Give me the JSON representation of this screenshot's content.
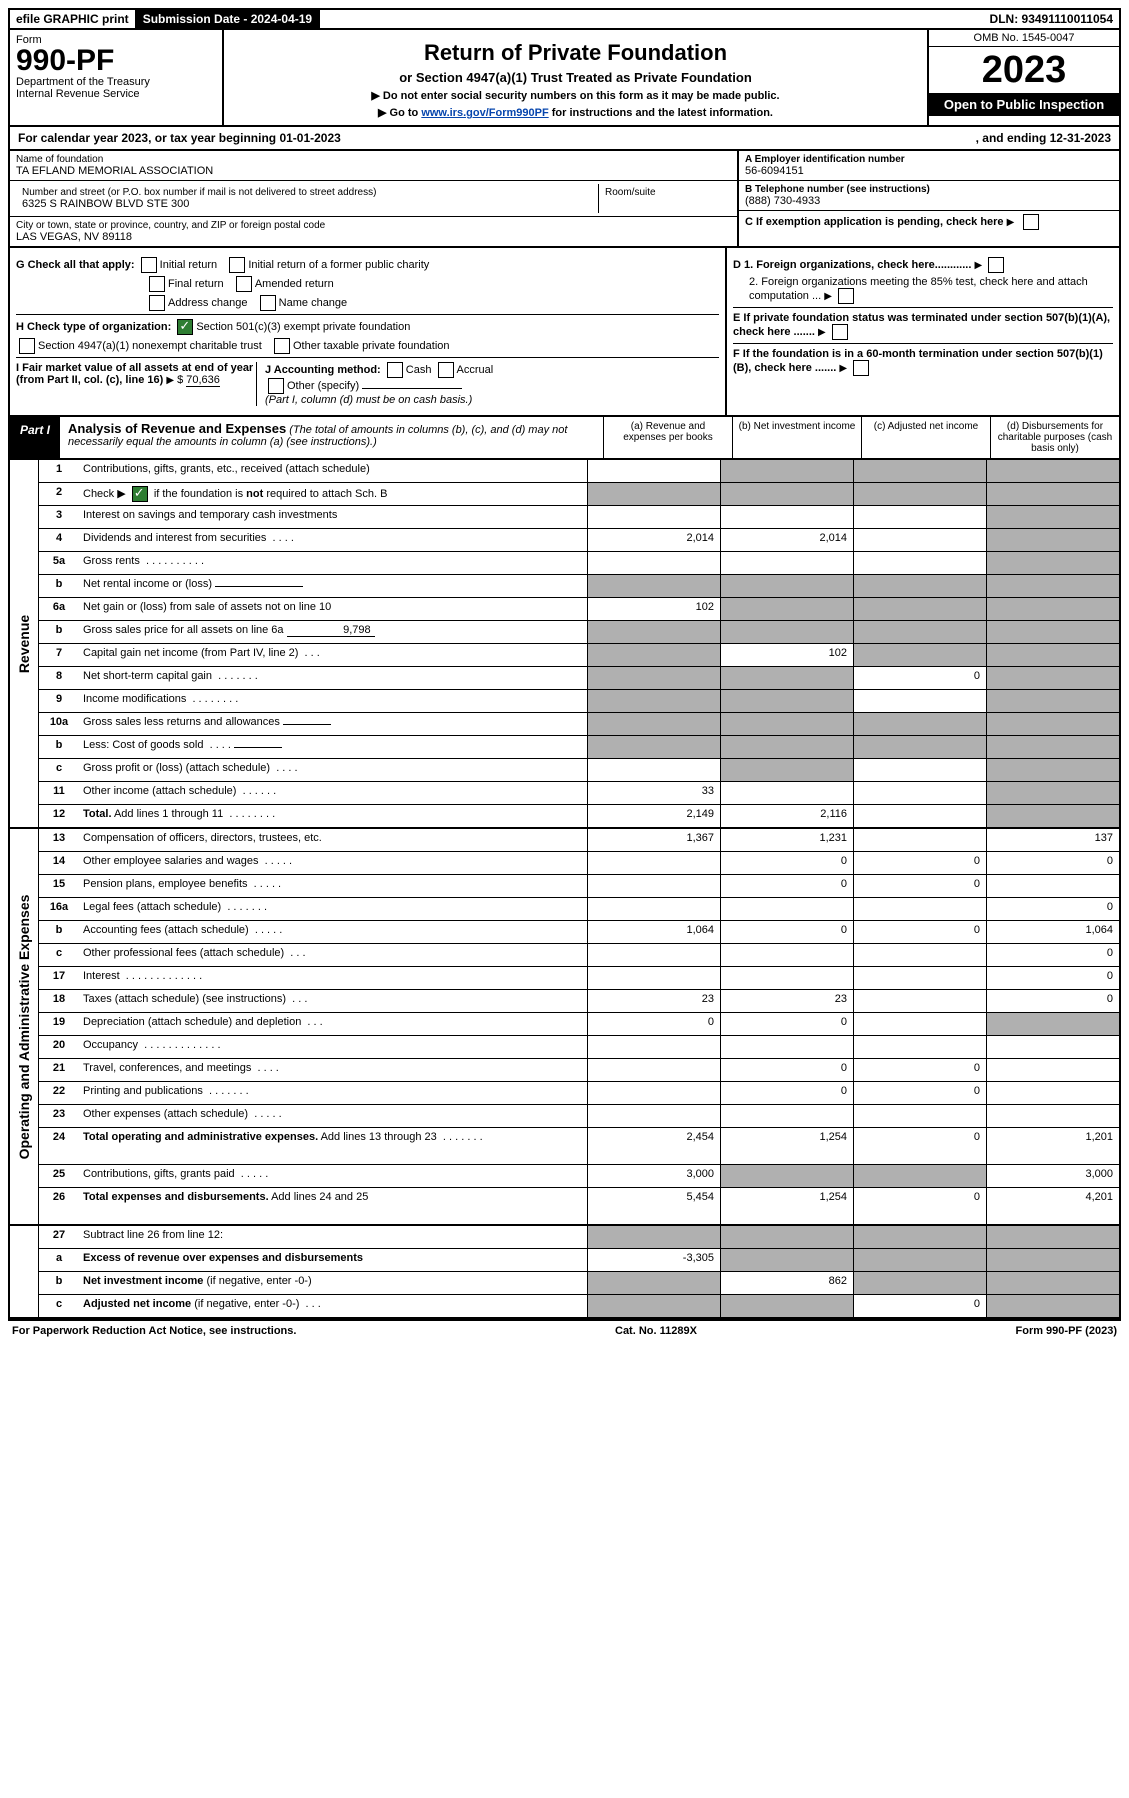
{
  "topbar": {
    "efile": "efile GRAPHIC print",
    "sub_lbl": "Submission Date - 2024-04-19",
    "dln": "DLN: 93491110011054"
  },
  "header": {
    "form_word": "Form",
    "form_no": "990-PF",
    "dept": "Department of the Treasury",
    "irs": "Internal Revenue Service",
    "title": "Return of Private Foundation",
    "subtitle": "or Section 4947(a)(1) Trust Treated as Private Foundation",
    "instr1": "▶ Do not enter social security numbers on this form as it may be made public.",
    "instr2_pre": "▶ Go to ",
    "instr2_link": "www.irs.gov/Form990PF",
    "instr2_post": " for instructions and the latest information.",
    "omb": "OMB No. 1545-0047",
    "year": "2023",
    "inspect": "Open to Public Inspection"
  },
  "calyear": {
    "left": "For calendar year 2023, or tax year beginning 01-01-2023",
    "right": ", and ending 12-31-2023"
  },
  "info": {
    "name_lbl": "Name of foundation",
    "name": "TA EFLAND MEMORIAL ASSOCIATION",
    "addr_lbl": "Number and street (or P.O. box number if mail is not delivered to street address)",
    "addr": "6325 S RAINBOW BLVD STE 300",
    "room_lbl": "Room/suite",
    "city_lbl": "City or town, state or province, country, and ZIP or foreign postal code",
    "city": "LAS VEGAS, NV  89118",
    "a_lbl": "A Employer identification number",
    "a_val": "56-6094151",
    "b_lbl": "B Telephone number (see instructions)",
    "b_val": "(888) 730-4933",
    "c_lbl": "C If exemption application is pending, check here"
  },
  "checks": {
    "g_lbl": "G Check all that apply:",
    "g1": "Initial return",
    "g2": "Initial return of a former public charity",
    "g3": "Final return",
    "g4": "Amended return",
    "g5": "Address change",
    "g6": "Name change",
    "h_lbl": "H Check type of organization:",
    "h1": "Section 501(c)(3) exempt private foundation",
    "h2": "Section 4947(a)(1) nonexempt charitable trust",
    "h3": "Other taxable private foundation",
    "i_lbl": "I Fair market value of all assets at end of year (from Part II, col. (c), line 16)",
    "i_val": "70,636",
    "j_lbl": "J Accounting method:",
    "j1": "Cash",
    "j2": "Accrual",
    "j3": "Other (specify)",
    "j_note": "(Part I, column (d) must be on cash basis.)",
    "d1": "D 1. Foreign organizations, check here............",
    "d2": "2. Foreign organizations meeting the 85% test, check here and attach computation ...",
    "e": "E If private foundation status was terminated under section 507(b)(1)(A), check here .......",
    "f": "F If the foundation is in a 60-month termination under section 507(b)(1)(B), check here ......."
  },
  "part1": {
    "tag": "Part I",
    "title": "Analysis of Revenue and Expenses",
    "title_note": " (The total of amounts in columns (b), (c), and (d) may not necessarily equal the amounts in column (a) (see instructions).)",
    "cols": {
      "a": "(a) Revenue and expenses per books",
      "b": "(b) Net investment income",
      "c": "(c) Adjusted net income",
      "d": "(d) Disbursements for charitable purposes (cash basis only)"
    }
  },
  "side": {
    "rev": "Revenue",
    "exp": "Operating and Administrative Expenses"
  },
  "lines": {
    "l1": {
      "n": "1",
      "d": "Contributions, gifts, grants, etc., received (attach schedule)"
    },
    "l2": {
      "n": "2",
      "d_pre": "Check ▶ ",
      "d_post": " if the foundation is <b>not</b> required to attach Sch. B"
    },
    "l3": {
      "n": "3",
      "d": "Interest on savings and temporary cash investments"
    },
    "l4": {
      "n": "4",
      "d": "Dividends and interest from securities",
      "a": "2,014",
      "b": "2,014"
    },
    "l5a": {
      "n": "5a",
      "d": "Gross rents"
    },
    "l5b": {
      "n": "b",
      "d": "Net rental income or (loss)"
    },
    "l6a": {
      "n": "6a",
      "d": "Net gain or (loss) from sale of assets not on line 10",
      "a": "102"
    },
    "l6b": {
      "n": "b",
      "d": "Gross sales price for all assets on line 6a",
      "amt": "9,798"
    },
    "l7": {
      "n": "7",
      "d": "Capital gain net income (from Part IV, line 2)",
      "b": "102"
    },
    "l8": {
      "n": "8",
      "d": "Net short-term capital gain",
      "c": "0"
    },
    "l9": {
      "n": "9",
      "d": "Income modifications"
    },
    "l10a": {
      "n": "10a",
      "d": "Gross sales less returns and allowances"
    },
    "l10b": {
      "n": "b",
      "d": "Less: Cost of goods sold"
    },
    "l10c": {
      "n": "c",
      "d": "Gross profit or (loss) (attach schedule)"
    },
    "l11": {
      "n": "11",
      "d": "Other income (attach schedule)",
      "a": "33"
    },
    "l12": {
      "n": "12",
      "d": "<b>Total.</b> Add lines 1 through 11",
      "a": "2,149",
      "b": "2,116"
    },
    "l13": {
      "n": "13",
      "d": "Compensation of officers, directors, trustees, etc.",
      "a": "1,367",
      "b": "1,231",
      "dd": "137"
    },
    "l14": {
      "n": "14",
      "d": "Other employee salaries and wages",
      "b": "0",
      "c": "0",
      "dd": "0"
    },
    "l15": {
      "n": "15",
      "d": "Pension plans, employee benefits",
      "b": "0",
      "c": "0"
    },
    "l16a": {
      "n": "16a",
      "d": "Legal fees (attach schedule)",
      "dd": "0"
    },
    "l16b": {
      "n": "b",
      "d": "Accounting fees (attach schedule)",
      "a": "1,064",
      "b": "0",
      "c": "0",
      "dd": "1,064"
    },
    "l16c": {
      "n": "c",
      "d": "Other professional fees (attach schedule)",
      "dd": "0"
    },
    "l17": {
      "n": "17",
      "d": "Interest",
      "dd": "0"
    },
    "l18": {
      "n": "18",
      "d": "Taxes (attach schedule) (see instructions)",
      "a": "23",
      "b": "23",
      "dd": "0"
    },
    "l19": {
      "n": "19",
      "d": "Depreciation (attach schedule) and depletion",
      "a": "0",
      "b": "0"
    },
    "l20": {
      "n": "20",
      "d": "Occupancy"
    },
    "l21": {
      "n": "21",
      "d": "Travel, conferences, and meetings",
      "b": "0",
      "c": "0"
    },
    "l22": {
      "n": "22",
      "d": "Printing and publications",
      "b": "0",
      "c": "0"
    },
    "l23": {
      "n": "23",
      "d": "Other expenses (attach schedule)"
    },
    "l24": {
      "n": "24",
      "d": "<b>Total operating and administrative expenses.</b> Add lines 13 through 23",
      "a": "2,454",
      "b": "1,254",
      "c": "0",
      "dd": "1,201"
    },
    "l25": {
      "n": "25",
      "d": "Contributions, gifts, grants paid",
      "a": "3,000",
      "dd": "3,000"
    },
    "l26": {
      "n": "26",
      "d": "<b>Total expenses and disbursements.</b> Add lines 24 and 25",
      "a": "5,454",
      "b": "1,254",
      "c": "0",
      "dd": "4,201"
    },
    "l27": {
      "n": "27",
      "d": "Subtract line 26 from line 12:"
    },
    "l27a": {
      "n": "a",
      "d": "<b>Excess of revenue over expenses and disbursements</b>",
      "a": "-3,305"
    },
    "l27b": {
      "n": "b",
      "d": "<b>Net investment income</b> (if negative, enter -0-)",
      "b": "862"
    },
    "l27c": {
      "n": "c",
      "d": "<b>Adjusted net income</b> (if negative, enter -0-)",
      "c": "0"
    }
  },
  "footer": {
    "left": "For Paperwork Reduction Act Notice, see instructions.",
    "mid": "Cat. No. 11289X",
    "right": "Form 990-PF (2023)"
  },
  "colors": {
    "grey": "#b0b0b0",
    "link": "#0645AD",
    "checked": "#2e7d32"
  }
}
